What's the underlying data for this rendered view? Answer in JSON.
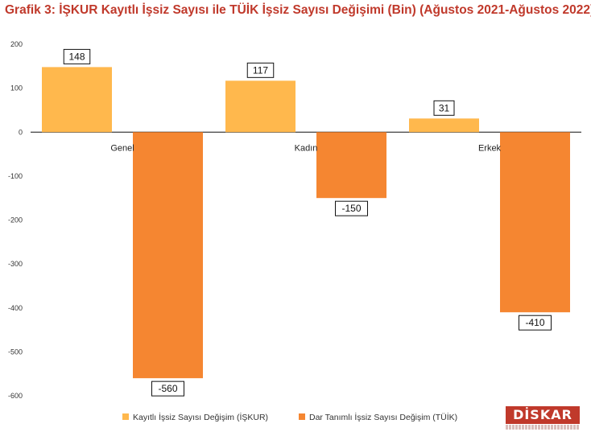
{
  "title": "Grafik 3: İŞKUR Kayıtlı İşsiz Sayısı ile TÜİK İşsiz Sayısı Değişimi (Bin) (Ağustos 2021-Ağustos 2022)",
  "logo_text": "DİSKAR",
  "colors": {
    "title": "#c0392b",
    "iskur": "#ffb84d",
    "tuik": "#f58631",
    "axis": "#111111"
  },
  "chart_data": {
    "type": "bar",
    "title": "Grafik 3: İŞKUR Kayıtlı İşsiz Sayısı ile TÜİK İşsiz Sayısı Değişimi (Bin) (Ağustos 2021-Ağustos 2022)",
    "categories": [
      "Genel",
      "Kadın",
      "Erkek"
    ],
    "series": [
      {
        "name": "Kayıtlı İşsiz Sayısı Değişim (İŞKUR)",
        "values": [
          148,
          117,
          31
        ]
      },
      {
        "name": "Dar Tanımlı İşsiz Sayısı Değişim (TÜİK)",
        "values": [
          -560,
          -150,
          -410
        ]
      }
    ],
    "ylim": [
      -600,
      200
    ],
    "yticks": [
      200,
      100,
      0,
      -100,
      -200,
      -300,
      -400,
      -500,
      -600
    ],
    "grid": false,
    "legend_position": "bottom",
    "xlabel": "",
    "ylabel": ""
  }
}
